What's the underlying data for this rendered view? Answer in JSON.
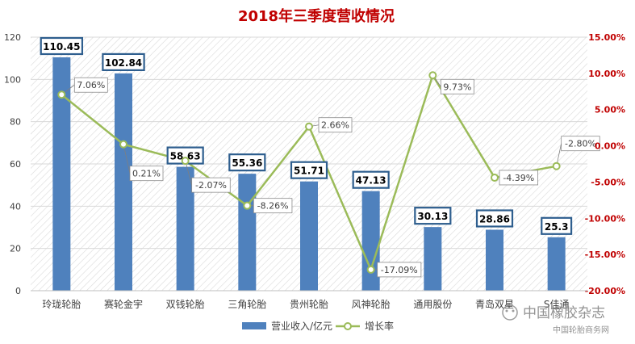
{
  "chart_data": {
    "type": "bar",
    "title": "2018年三季度营收情况",
    "categories": [
      "玲珑轮胎",
      "赛轮金宇",
      "双钱轮胎",
      "三角轮胎",
      "贵州轮胎",
      "风神轮胎",
      "通用股份",
      "青岛双星",
      "S佳通"
    ],
    "category_labels_shown": [
      "玲珑轮胎",
      "赛轮金宇",
      "双钱轮胎",
      "三角轮胎",
      "贵州轮胎",
      "风神轮胎",
      "通用股份",
      "青岛双星",
      "S佳通"
    ],
    "series": [
      {
        "name": "营业收入/亿元",
        "type": "bar",
        "axis": "left",
        "color": "#4F81BD",
        "values": [
          110.45,
          102.84,
          58.63,
          55.36,
          51.71,
          47.13,
          30.13,
          28.86,
          25.3
        ],
        "labels": [
          "110.45",
          "102.84",
          "58.63",
          "55.36",
          "51.71",
          "47.13",
          "30.13",
          "28.86",
          "25.3"
        ]
      },
      {
        "name": "增长率",
        "type": "line",
        "axis": "right",
        "color": "#9BBB59",
        "values": [
          7.06,
          0.21,
          -2.07,
          -8.26,
          2.66,
          -17.09,
          9.73,
          -4.39,
          -2.8
        ],
        "labels": [
          "7.06%",
          "0.21%",
          "-2.07%",
          "-8.26%",
          "2.66%",
          "-17.09%",
          "9.73%",
          "-4.39%",
          "-2.80%"
        ]
      }
    ],
    "y_left": {
      "min": 0,
      "max": 120,
      "ticks": [
        "0",
        "20",
        "40",
        "60",
        "80",
        "100",
        "120"
      ]
    },
    "y_right": {
      "min": -20,
      "max": 15,
      "ticks": [
        "-20.00%",
        "-15.00%",
        "-10.00%",
        "-5.00%",
        "0.00%",
        "5.00%",
        "10.00%",
        "15.00%"
      ]
    },
    "legend": {
      "position": "bottom"
    },
    "grid": "horizontal",
    "title_color": "#C00000",
    "right_axis_color": "#C00000"
  },
  "watermark": {
    "line1": "中国橡胶杂志",
    "line2": "中国轮胎商务网"
  }
}
